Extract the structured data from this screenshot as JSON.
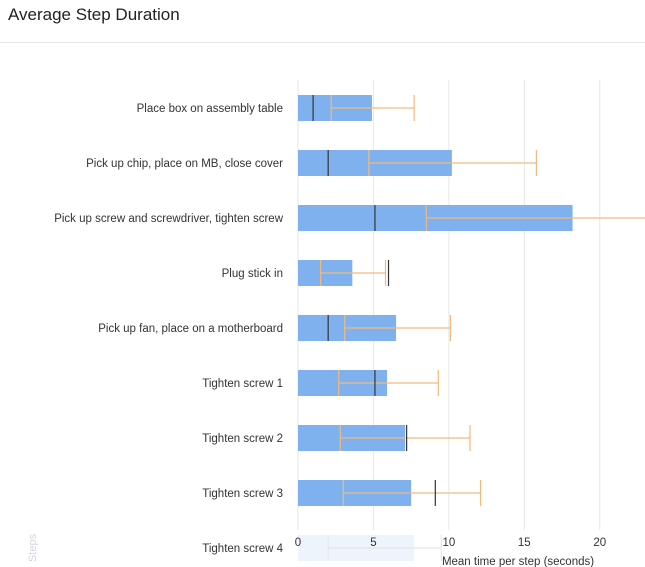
{
  "page_title": "Average Step Duration",
  "chart_data": {
    "type": "bar",
    "orientation": "horizontal",
    "xlabel": "Mean time per step (seconds)",
    "ylabel": "Steps",
    "xlim": [
      0,
      23
    ],
    "xticks": [
      0,
      5,
      10,
      15,
      20
    ],
    "grid": true,
    "colors": {
      "bar": "#7eb1ee",
      "error": "#f2b97f",
      "marker": "#333333",
      "grid": "#e6e6e6",
      "lastBarFill": "#eef4fc"
    },
    "categories": [
      "Place box on assembly table",
      "Pick up chip, place on MB, close cover",
      "Pick up screw and screwdriver, tighten screw",
      "Plug stick in",
      "Pick up fan, place on a motherboard",
      "Tighten screw 1",
      "Tighten screw 2",
      "Tighten screw 3",
      "Tighten screw 4"
    ],
    "values": [
      4.9,
      10.2,
      18.2,
      3.6,
      6.5,
      5.9,
      7.1,
      7.5,
      7.7
    ],
    "error_low": [
      2.2,
      4.7,
      8.5,
      1.5,
      3.1,
      2.7,
      2.8,
      3.0,
      2.0
    ],
    "error_high": [
      7.7,
      15.8,
      23.5,
      5.8,
      10.1,
      9.3,
      11.4,
      12.1,
      9.5
    ],
    "median": [
      1.0,
      2.0,
      5.1,
      6.0,
      2.0,
      5.1,
      7.2,
      9.1,
      null
    ]
  }
}
